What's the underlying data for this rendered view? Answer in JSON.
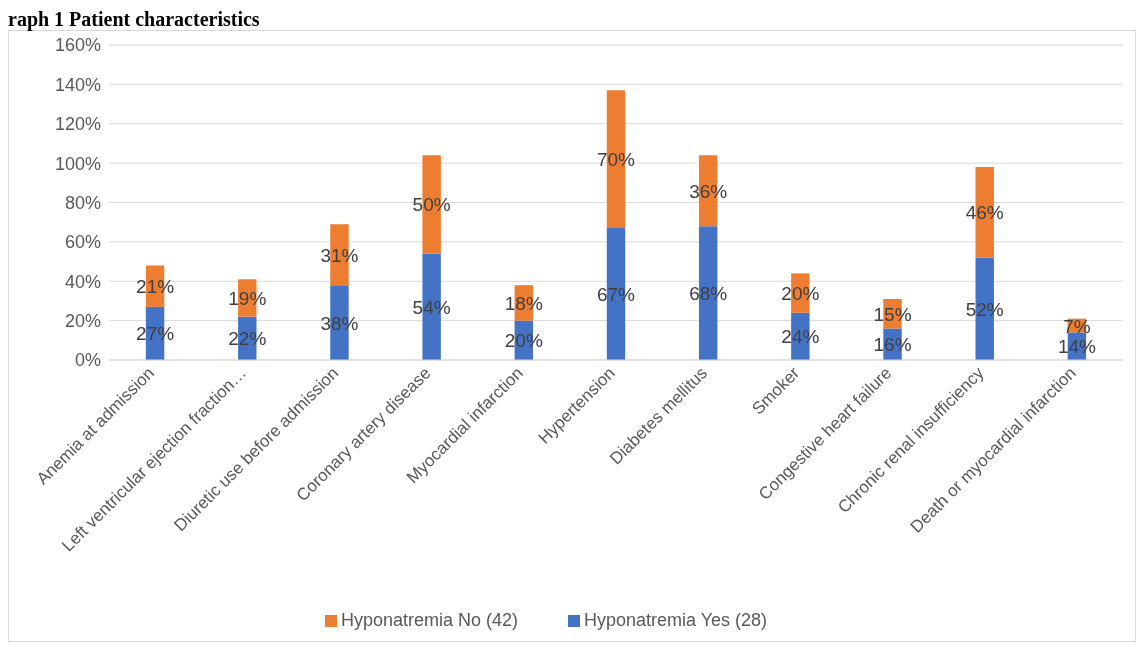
{
  "chart_data": {
    "type": "bar",
    "title": "raph 1 Patient characteristics",
    "categories": [
      "Anemia at admission",
      "Left ventricular ejection fraction…",
      "Diuretic use before admission",
      "Coronary artery disease",
      "Myocardial infarction",
      "Hypertension",
      "Diabetes mellitus",
      "Smoker",
      "Congestive heart failure",
      "Chronic renal insufficiency",
      "Death or myocardial infarction"
    ],
    "series": [
      {
        "name": "Hyponatremia Yes (28)",
        "color": "#4472c4",
        "values": [
          27,
          22,
          38,
          54,
          20,
          67,
          68,
          24,
          16,
          52,
          14
        ],
        "value_labels": [
          "27%",
          "22%",
          "38%",
          "54%",
          "20%",
          "67%",
          "68%",
          "24%",
          "16%",
          "52%",
          "14%"
        ]
      },
      {
        "name": "Hyponatremia No (42)",
        "color": "#ed7d31",
        "values": [
          21,
          19,
          31,
          50,
          18,
          70,
          36,
          20,
          15,
          46,
          7
        ],
        "value_labels": [
          "21%",
          "19%",
          "31%",
          "50%",
          "18%",
          "70%",
          "36%",
          "20%",
          "15%",
          "46%",
          "7%"
        ]
      }
    ],
    "stacked": true,
    "ylim": [
      0,
      160
    ],
    "yticks": [
      {
        "value": 0,
        "label": "0%"
      },
      {
        "value": 20,
        "label": "20%"
      },
      {
        "value": 40,
        "label": "40%"
      },
      {
        "value": 60,
        "label": "60%"
      },
      {
        "value": 80,
        "label": "80%"
      },
      {
        "value": 100,
        "label": "100%"
      },
      {
        "value": 120,
        "label": "120%"
      },
      {
        "value": 140,
        "label": "140%"
      },
      {
        "value": 160,
        "label": "160%"
      }
    ],
    "grid": "y",
    "legend": "bottom"
  }
}
